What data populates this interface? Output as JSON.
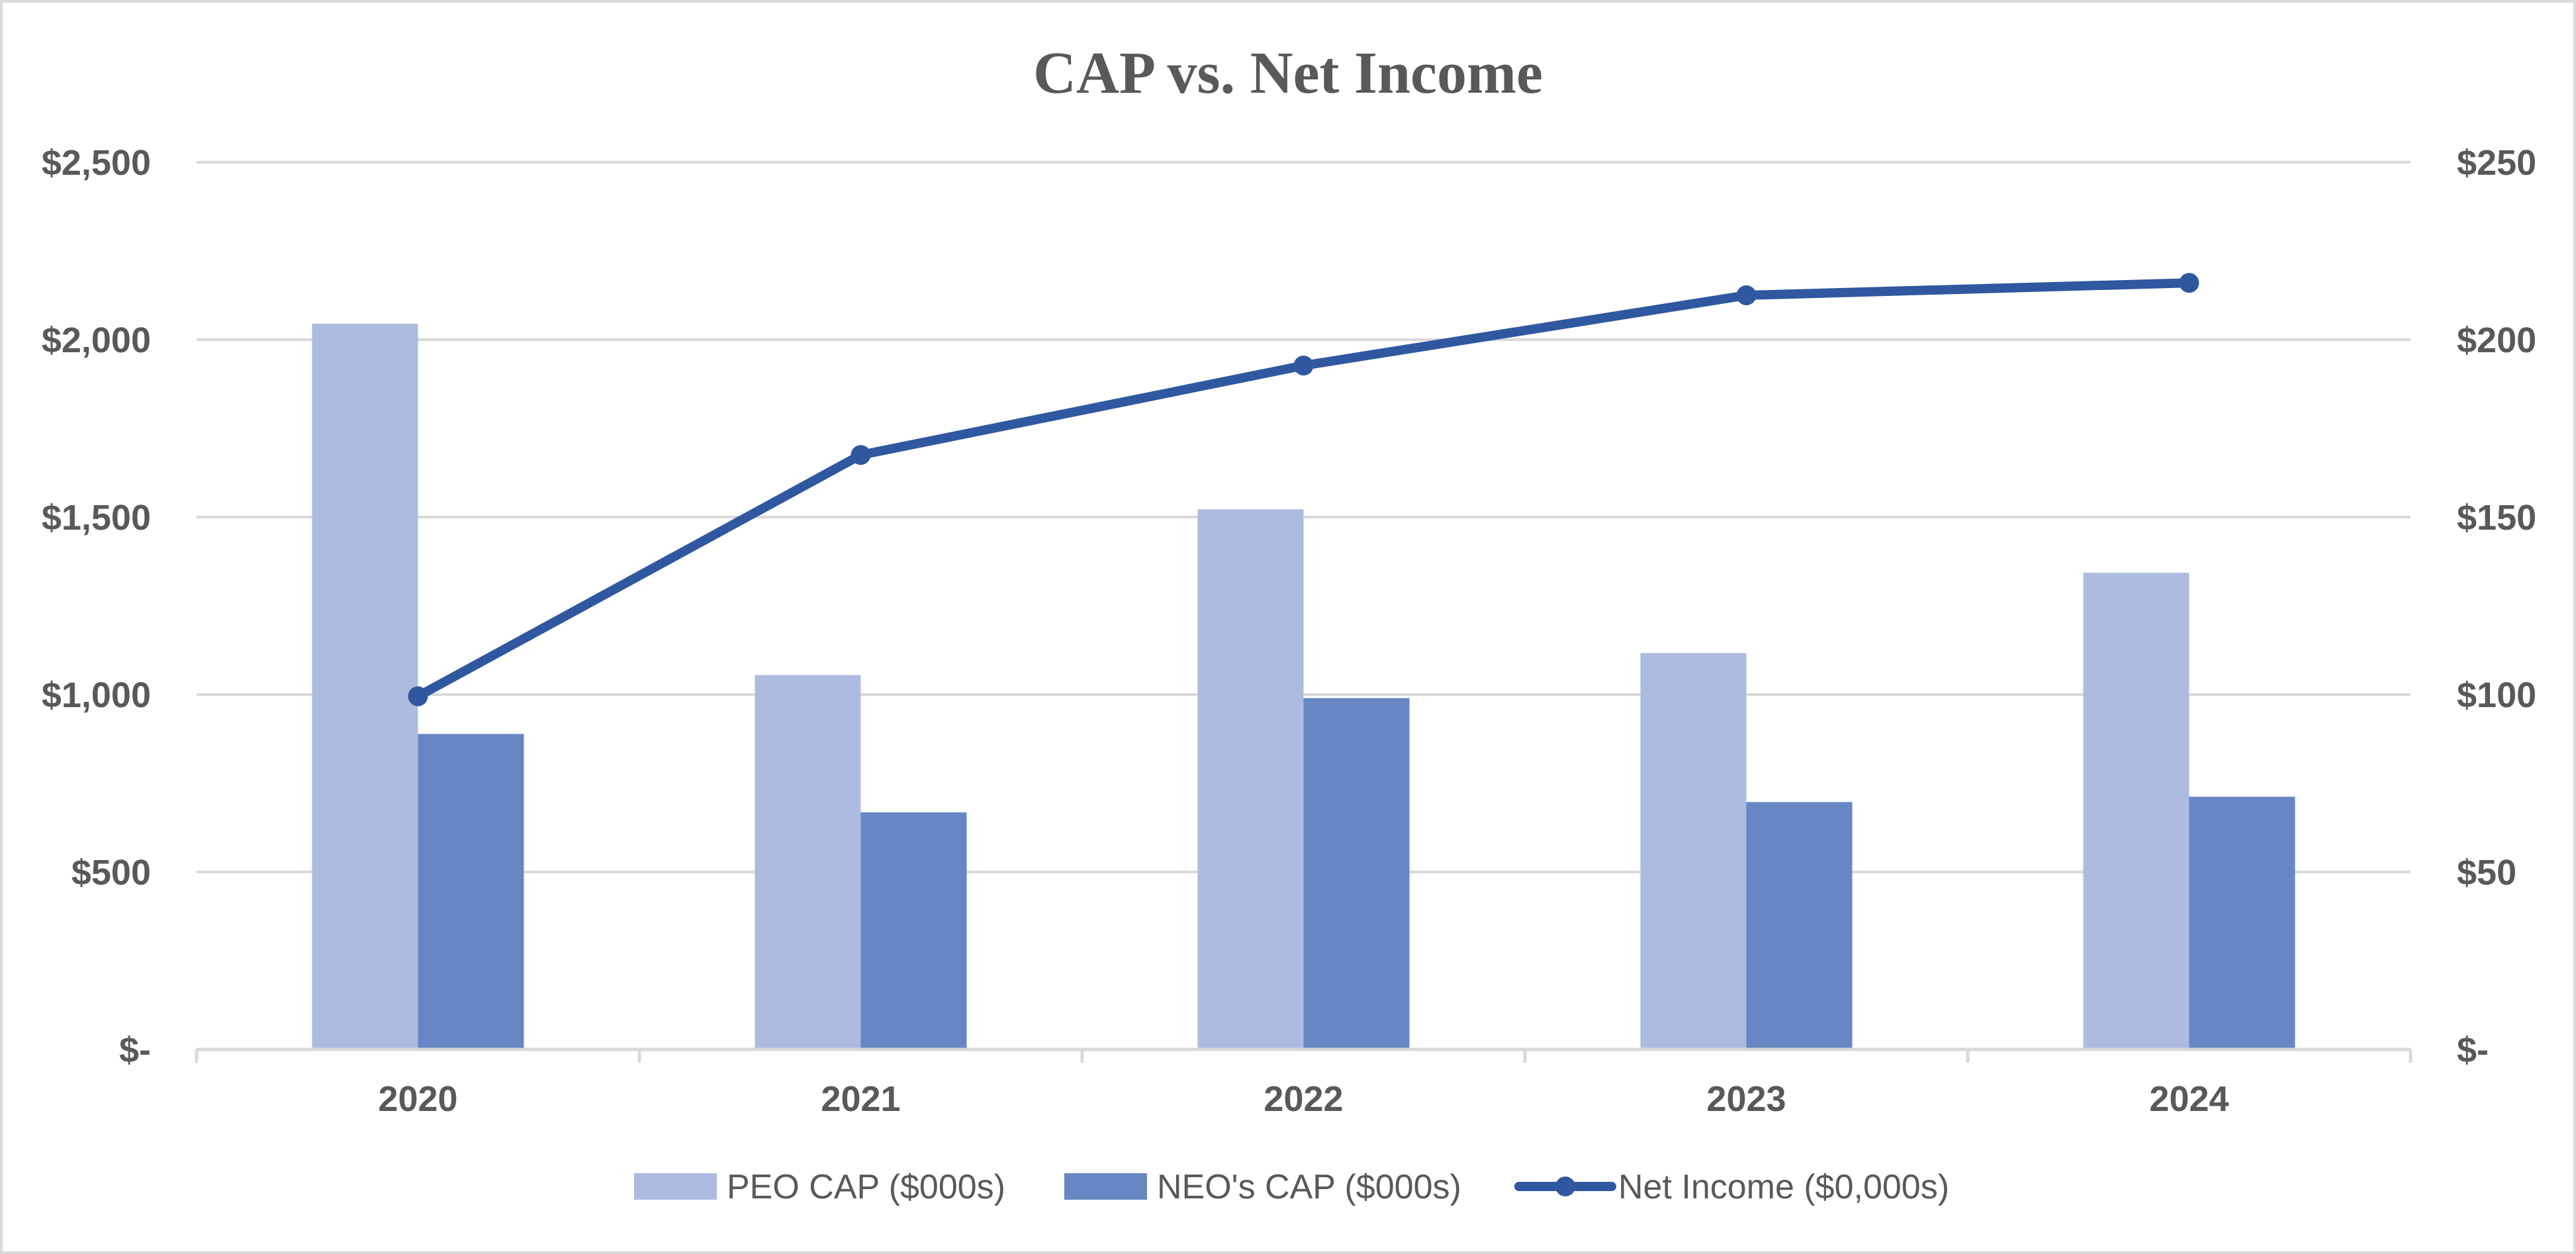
{
  "chart_data": {
    "type": "bar",
    "title": "CAP vs. Net Income",
    "categories": [
      "2020",
      "2021",
      "2022",
      "2023",
      "2024"
    ],
    "series": [
      {
        "name": "PEO CAP ($000s)",
        "kind": "bar",
        "axis": "left",
        "color": "#aebbe1",
        "values": [
          2045,
          1055,
          1522,
          1117,
          1343
        ]
      },
      {
        "name": "NEO's CAP ($000s)",
        "kind": "bar",
        "axis": "left",
        "color": "#6786c4",
        "values": [
          889,
          668,
          990,
          697,
          712
        ]
      },
      {
        "name": "Net Income ($0,000s)",
        "kind": "line",
        "axis": "right",
        "color": "#2f58a0",
        "values": [
          99.5,
          167.5,
          192.7,
          212.5,
          216.0
        ]
      }
    ],
    "y_left": {
      "min": 0,
      "max": 2500,
      "ticks": [
        0,
        500,
        1000,
        1500,
        2000,
        2500
      ],
      "tick_labels": [
        "$-",
        "$500",
        "$1,000",
        "$1,500",
        "$2,000",
        "$2,500"
      ]
    },
    "y_right": {
      "min": 0,
      "max": 250,
      "ticks": [
        0,
        50,
        100,
        150,
        200,
        250
      ],
      "tick_labels": [
        "$-",
        "$50",
        "$100",
        "$150",
        "$200",
        "$250"
      ]
    },
    "xlabel": "",
    "ylabel": "",
    "grid": true,
    "legend_position": "bottom-center",
    "colors": {
      "grid": "#d9d9d9",
      "axis": "#d9d9d9",
      "text": "#595959"
    }
  }
}
